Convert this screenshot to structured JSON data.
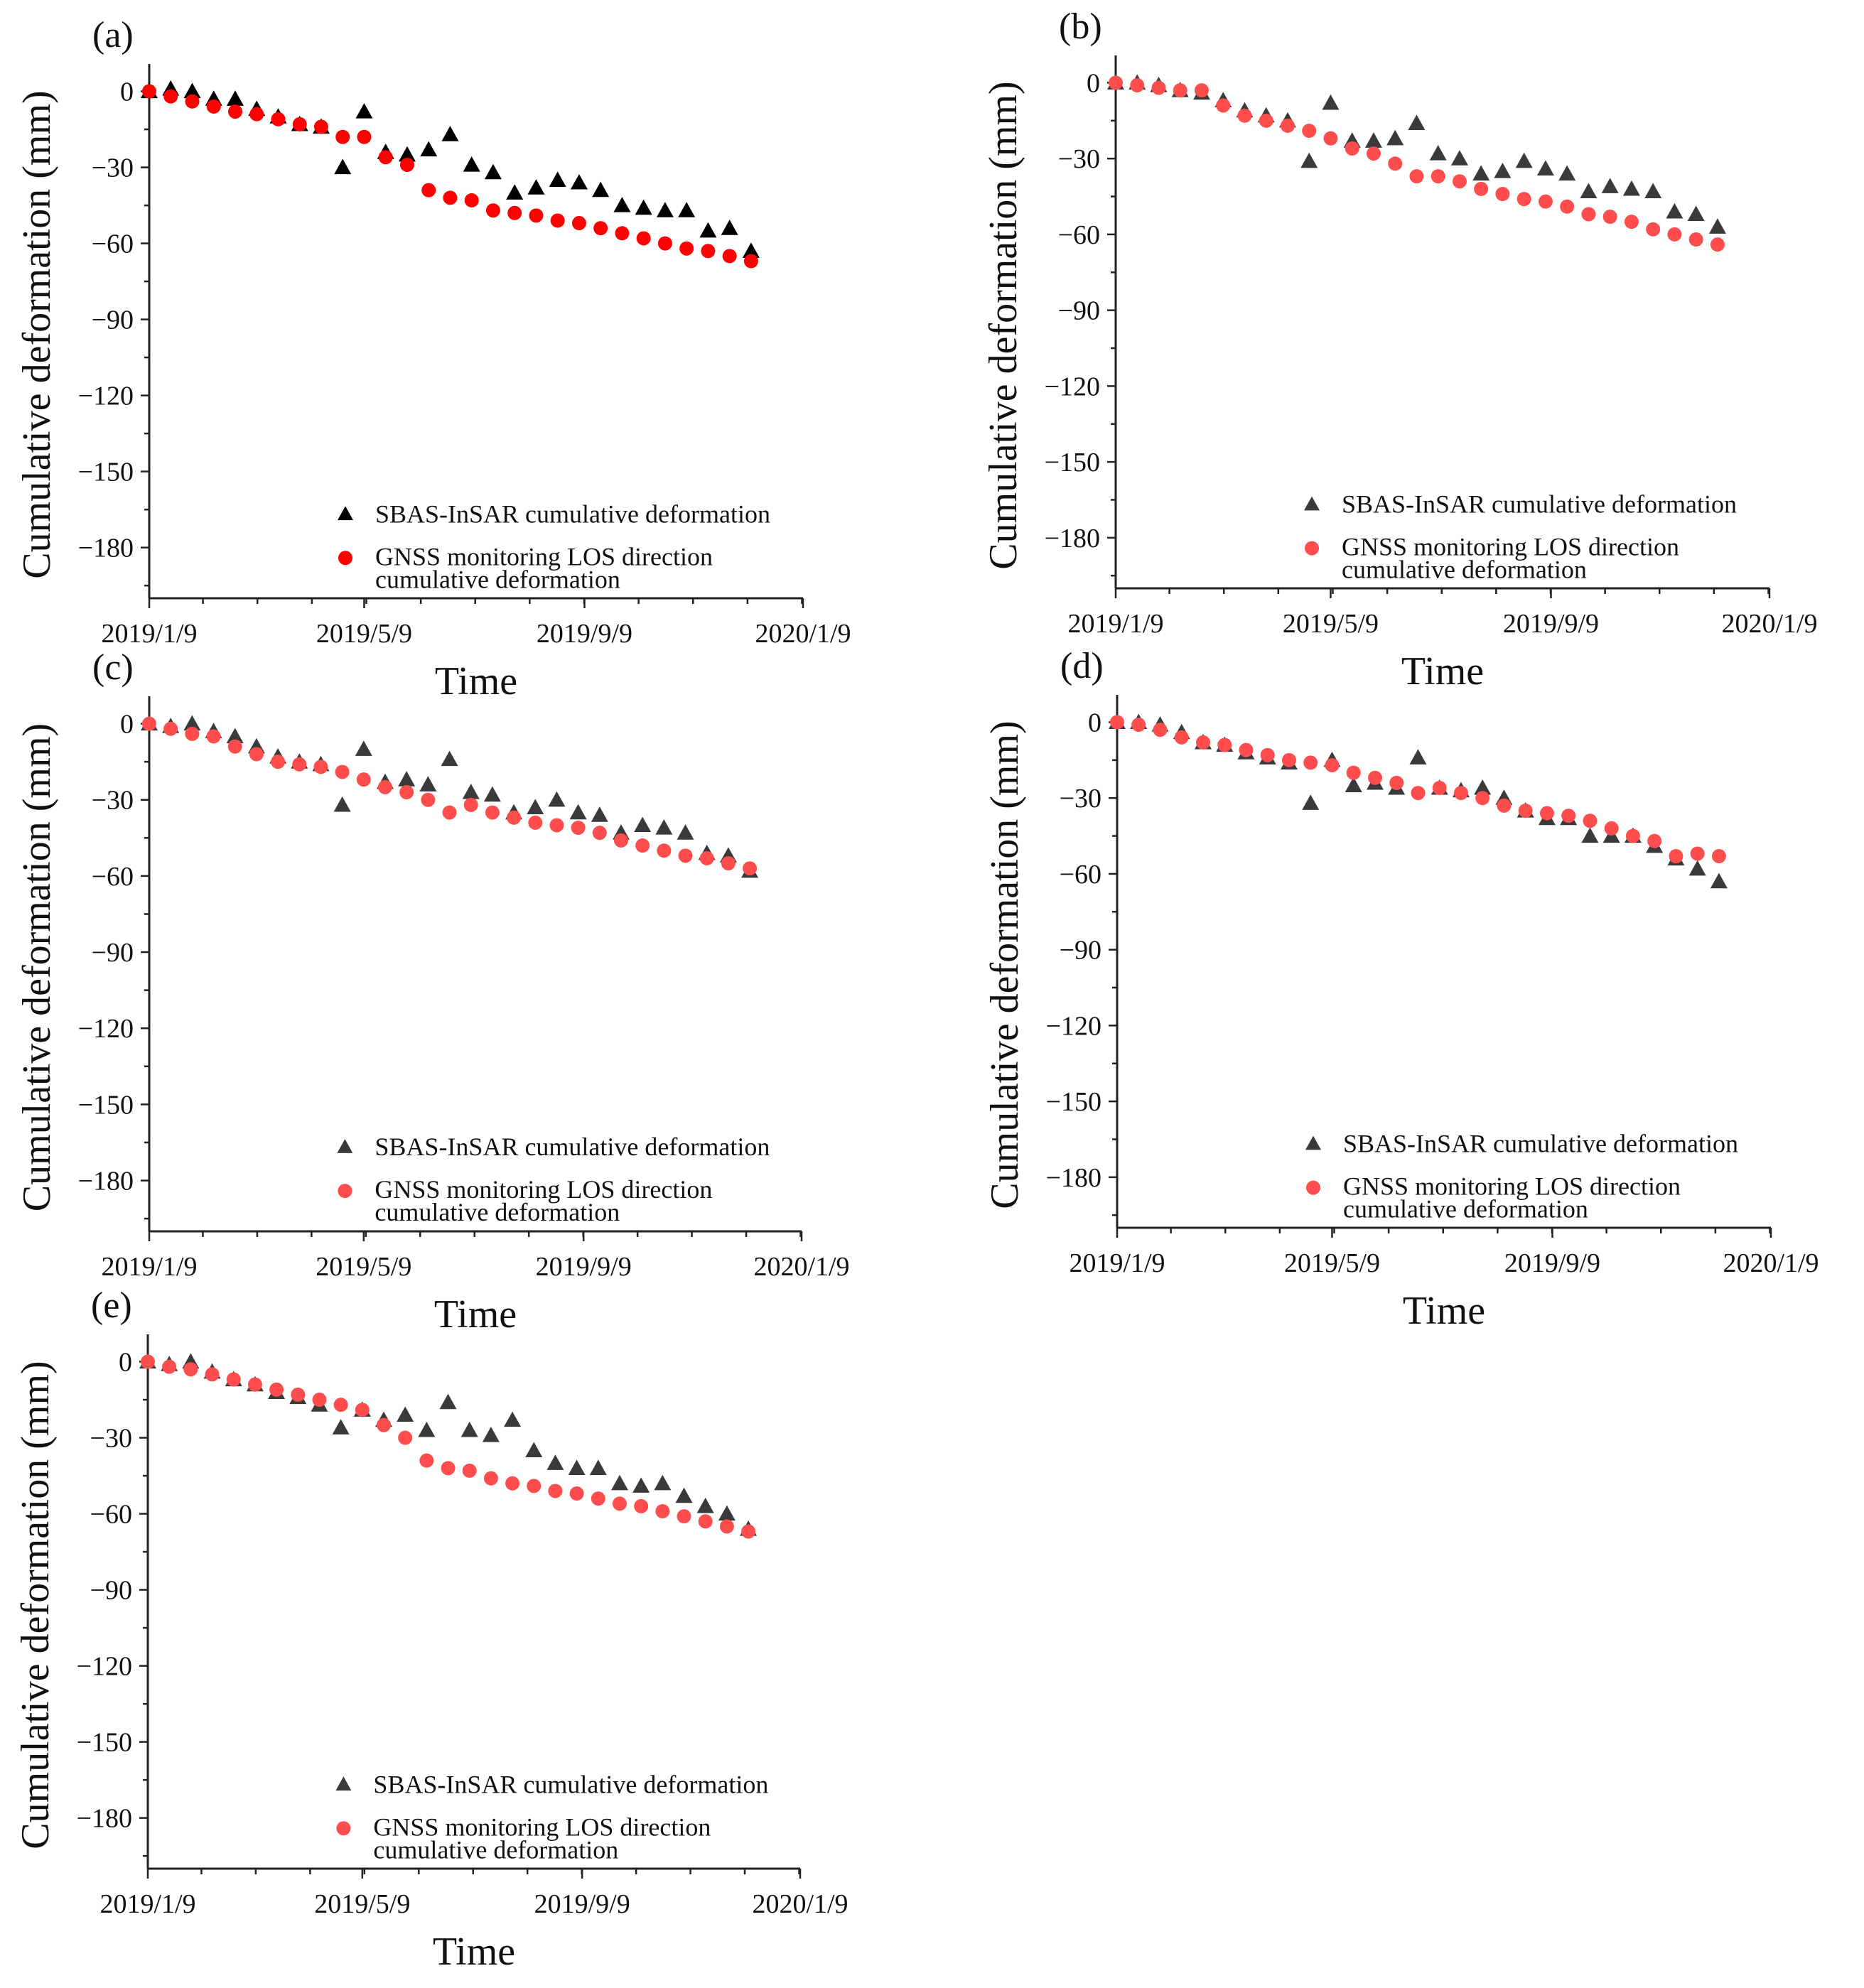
{
  "figure": {
    "colors": {
      "triangle_black": "#000000",
      "triangle_gray": "#3a3a3a",
      "gnss_red": "#ff0000",
      "gnss_red_soft": "#ff4d4d",
      "axis": "#222222"
    }
  },
  "chart_data": [
    {
      "id": "a",
      "type": "scatter",
      "panel_label": "(a)",
      "xlabel": "Time",
      "ylabel": "Cumulative deformation (mm)",
      "x_tick_labels": [
        "2019/1/9",
        "2019/5/9",
        "2019/9/9",
        "2020/1/9"
      ],
      "x_unit": "days since 2019/1/9",
      "xlim": [
        0,
        365
      ],
      "x_ticks": [
        0,
        120,
        243,
        365
      ],
      "y_tick_values": [
        0,
        -30,
        -60,
        -90,
        -120,
        -150,
        -180
      ],
      "ylim": [
        -200,
        8
      ],
      "legend_position": "bottom-right",
      "series": [
        {
          "name": "SBAS-InSAR cumulative deformation",
          "marker": "triangle",
          "color": "#000000",
          "x": [
            0,
            12,
            24,
            36,
            48,
            60,
            72,
            84,
            96,
            108,
            120,
            132,
            144,
            156,
            168,
            180,
            192,
            204,
            216,
            228,
            240,
            252,
            264,
            276,
            288,
            300,
            312,
            324,
            336
          ],
          "y": [
            0,
            1,
            0,
            -3,
            -3,
            -7,
            -10,
            -13,
            -14,
            -30,
            -8,
            -24,
            -25,
            -23,
            -17,
            -29,
            -32,
            -40,
            -38,
            -35,
            -36,
            -39,
            -45,
            -46,
            -47,
            -47,
            -55,
            -54,
            -63
          ]
        },
        {
          "name": "GNSS monitoring LOS direction cumulative deformation",
          "marker": "circle",
          "color": "#ff0000",
          "x": [
            0,
            12,
            24,
            36,
            48,
            60,
            72,
            84,
            96,
            108,
            120,
            132,
            144,
            156,
            168,
            180,
            192,
            204,
            216,
            228,
            240,
            252,
            264,
            276,
            288,
            300,
            312,
            324,
            336
          ],
          "y": [
            0,
            -2,
            -4,
            -6,
            -8,
            -9,
            -11,
            -13,
            -14,
            -18,
            -18,
            -26,
            -29,
            -39,
            -42,
            -43,
            -47,
            -48,
            -49,
            -51,
            -52,
            -54,
            -56,
            -58,
            -60,
            -62,
            -63,
            -65,
            -67
          ]
        }
      ]
    },
    {
      "id": "b",
      "type": "scatter",
      "panel_label": "(b)",
      "xlabel": "Time",
      "ylabel": "Cumulative deformation (mm)",
      "x_tick_labels": [
        "2019/1/9",
        "2019/5/9",
        "2019/9/9",
        "2020/1/9"
      ],
      "x_unit": "days since 2019/1/9",
      "xlim": [
        0,
        365
      ],
      "x_ticks": [
        0,
        120,
        243,
        365
      ],
      "y_tick_values": [
        0,
        -30,
        -60,
        -90,
        -120,
        -150,
        -180
      ],
      "ylim": [
        -200,
        8
      ],
      "legend_position": "bottom-right",
      "series": [
        {
          "name": "SBAS-InSAR cumulative deformation",
          "marker": "triangle",
          "color": "#3a3a3a",
          "x": [
            0,
            12,
            24,
            36,
            48,
            60,
            72,
            84,
            96,
            108,
            120,
            132,
            144,
            156,
            168,
            180,
            192,
            204,
            216,
            228,
            240,
            252,
            264,
            276,
            288,
            300,
            312,
            324,
            336
          ],
          "y": [
            0,
            0,
            -1,
            -3,
            -4,
            -7,
            -11,
            -13,
            -15,
            -31,
            -8,
            -23,
            -23,
            -22,
            -16,
            -28,
            -30,
            -36,
            -35,
            -31,
            -34,
            -36,
            -43,
            -41,
            -42,
            -43,
            -51,
            -52,
            -57
          ]
        },
        {
          "name": "GNSS monitoring LOS direction cumulative deformation",
          "marker": "circle",
          "color": "#ff4d4d",
          "x": [
            0,
            12,
            24,
            36,
            48,
            60,
            72,
            84,
            96,
            108,
            120,
            132,
            144,
            156,
            168,
            180,
            192,
            204,
            216,
            228,
            240,
            252,
            264,
            276,
            288,
            300,
            312,
            324,
            336
          ],
          "y": [
            0,
            -1,
            -2,
            -3,
            -3,
            -9,
            -13,
            -15,
            -17,
            -19,
            -22,
            -26,
            -28,
            -32,
            -37,
            -37,
            -39,
            -42,
            -44,
            -46,
            -47,
            -49,
            -52,
            -53,
            -55,
            -58,
            -60,
            -62,
            -64
          ]
        }
      ]
    },
    {
      "id": "c",
      "type": "scatter",
      "panel_label": "(c)",
      "xlabel": "Time",
      "ylabel": "Cumulative deformation (mm)",
      "x_tick_labels": [
        "2019/1/9",
        "2019/5/9",
        "2019/9/9",
        "2020/1/9"
      ],
      "x_unit": "days since 2019/1/9",
      "xlim": [
        0,
        365
      ],
      "x_ticks": [
        0,
        120,
        243,
        365
      ],
      "y_tick_values": [
        0,
        -30,
        -60,
        -90,
        -120,
        -150,
        -180
      ],
      "ylim": [
        -200,
        8
      ],
      "legend_position": "bottom-right",
      "series": [
        {
          "name": "SBAS-InSAR cumulative deformation",
          "marker": "triangle",
          "color": "#3a3a3a",
          "x": [
            0,
            12,
            24,
            36,
            48,
            60,
            72,
            84,
            96,
            108,
            120,
            132,
            144,
            156,
            168,
            180,
            192,
            204,
            216,
            228,
            240,
            252,
            264,
            276,
            288,
            300,
            312,
            324,
            336
          ],
          "y": [
            0,
            -1,
            0,
            -3,
            -5,
            -9,
            -13,
            -15,
            -16,
            -32,
            -10,
            -23,
            -22,
            -24,
            -14,
            -27,
            -28,
            -35,
            -33,
            -30,
            -35,
            -36,
            -43,
            -40,
            -41,
            -43,
            -51,
            -52,
            -58
          ]
        },
        {
          "name": "GNSS monitoring LOS direction cumulative deformation",
          "marker": "circle",
          "color": "#ff4d4d",
          "x": [
            0,
            12,
            24,
            36,
            48,
            60,
            72,
            84,
            96,
            108,
            120,
            132,
            144,
            156,
            168,
            180,
            192,
            204,
            216,
            228,
            240,
            252,
            264,
            276,
            288,
            300,
            312,
            324,
            336
          ],
          "y": [
            0,
            -2,
            -4,
            -5,
            -9,
            -12,
            -15,
            -16,
            -17,
            -19,
            -22,
            -25,
            -27,
            -30,
            -35,
            -32,
            -35,
            -37,
            -39,
            -40,
            -41,
            -43,
            -46,
            -48,
            -50,
            -52,
            -53,
            -55,
            -57
          ]
        }
      ]
    },
    {
      "id": "d",
      "type": "scatter",
      "panel_label": "(d)",
      "xlabel": "Time",
      "ylabel": "Cumulative deformation (mm)",
      "x_tick_labels": [
        "2019/1/9",
        "2019/5/9",
        "2019/9/9",
        "2020/1/9"
      ],
      "x_unit": "days since 2019/1/9",
      "xlim": [
        0,
        365
      ],
      "x_ticks": [
        0,
        120,
        243,
        365
      ],
      "y_tick_values": [
        0,
        -30,
        -60,
        -90,
        -120,
        -150,
        -180
      ],
      "ylim": [
        -200,
        8
      ],
      "legend_position": "bottom-right",
      "series": [
        {
          "name": "SBAS-InSAR cumulative deformation",
          "marker": "triangle",
          "color": "#3a3a3a",
          "x": [
            0,
            12,
            24,
            36,
            48,
            60,
            72,
            84,
            96,
            108,
            120,
            132,
            144,
            156,
            168,
            180,
            192,
            204,
            216,
            228,
            240,
            252,
            264,
            276,
            288,
            300,
            312,
            324,
            336
          ],
          "y": [
            0,
            0,
            -1,
            -4,
            -8,
            -9,
            -12,
            -14,
            -16,
            -32,
            -15,
            -25,
            -24,
            -26,
            -14,
            -26,
            -27,
            -26,
            -30,
            -35,
            -38,
            -38,
            -45,
            -45,
            -45,
            -49,
            -54,
            -58,
            -63
          ]
        },
        {
          "name": "GNSS monitoring LOS direction cumulative deformation",
          "marker": "circle",
          "color": "#ff4d4d",
          "x": [
            0,
            12,
            24,
            36,
            48,
            60,
            72,
            84,
            96,
            108,
            120,
            132,
            144,
            156,
            168,
            180,
            192,
            204,
            216,
            228,
            240,
            252,
            264,
            276,
            288,
            300,
            312,
            324,
            336
          ],
          "y": [
            0,
            -1,
            -3,
            -6,
            -8,
            -9,
            -11,
            -13,
            -15,
            -16,
            -17,
            -20,
            -22,
            -24,
            -28,
            -26,
            -28,
            -30,
            -33,
            -35,
            -36,
            -37,
            -39,
            -42,
            -45,
            -47,
            -53,
            -52,
            -53
          ]
        }
      ]
    },
    {
      "id": "e",
      "type": "scatter",
      "panel_label": "(e)",
      "xlabel": "Time",
      "ylabel": "Cumulative deformation (mm)",
      "x_tick_labels": [
        "2019/1/9",
        "2019/5/9",
        "2019/9/9",
        "2020/1/9"
      ],
      "x_unit": "days since 2019/1/9",
      "xlim": [
        0,
        365
      ],
      "x_ticks": [
        0,
        120,
        243,
        365
      ],
      "y_tick_values": [
        0,
        -30,
        -60,
        -90,
        -120,
        -150,
        -180
      ],
      "ylim": [
        -200,
        8
      ],
      "legend_position": "bottom-right",
      "series": [
        {
          "name": "SBAS-InSAR cumulative deformation",
          "marker": "triangle",
          "color": "#3a3a3a",
          "x": [
            0,
            12,
            24,
            36,
            48,
            60,
            72,
            84,
            96,
            108,
            120,
            132,
            144,
            156,
            168,
            180,
            192,
            204,
            216,
            228,
            240,
            252,
            264,
            276,
            288,
            300,
            312,
            324,
            336
          ],
          "y": [
            0,
            -1,
            0,
            -4,
            -7,
            -9,
            -12,
            -14,
            -17,
            -26,
            -19,
            -23,
            -21,
            -27,
            -16,
            -27,
            -29,
            -23,
            -35,
            -40,
            -42,
            -42,
            -48,
            -49,
            -48,
            -53,
            -57,
            -60,
            -66
          ]
        },
        {
          "name": "GNSS monitoring LOS direction cumulative deformation",
          "marker": "circle",
          "color": "#ff4d4d",
          "x": [
            0,
            12,
            24,
            36,
            48,
            60,
            72,
            84,
            96,
            108,
            120,
            132,
            144,
            156,
            168,
            180,
            192,
            204,
            216,
            228,
            240,
            252,
            264,
            276,
            288,
            300,
            312,
            324,
            336
          ],
          "y": [
            0,
            -2,
            -3,
            -5,
            -7,
            -9,
            -11,
            -13,
            -15,
            -17,
            -19,
            -25,
            -30,
            -39,
            -42,
            -43,
            -46,
            -48,
            -49,
            -51,
            -52,
            -54,
            -56,
            -57,
            -59,
            -61,
            -63,
            -65,
            -67
          ]
        }
      ]
    }
  ]
}
